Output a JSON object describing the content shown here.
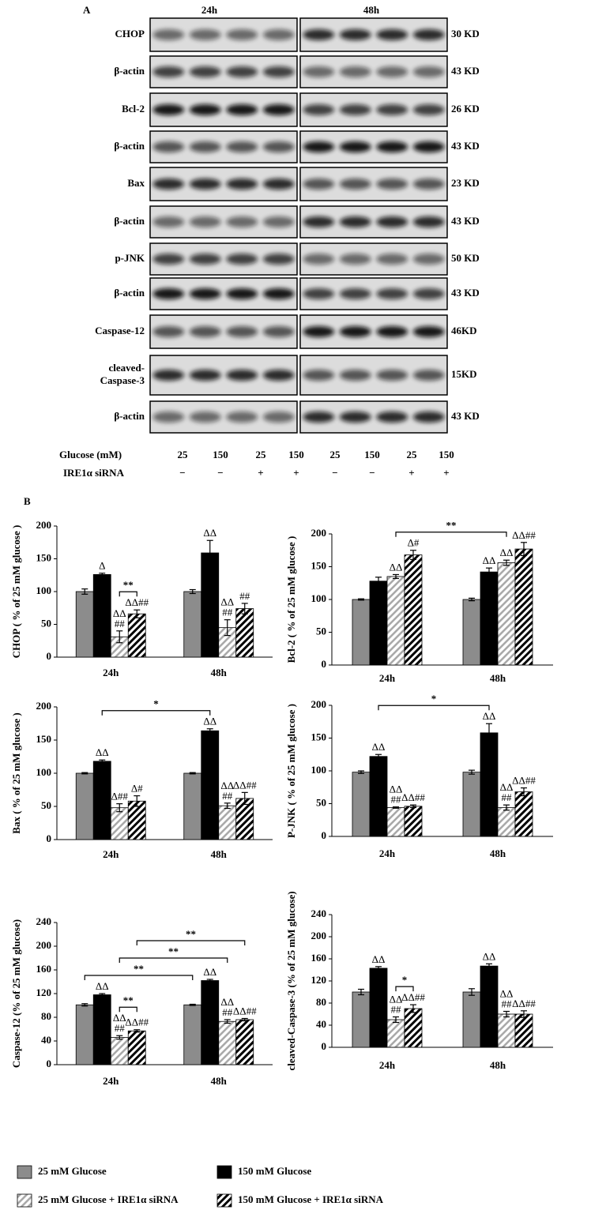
{
  "panel_a": {
    "label": "A",
    "times": [
      "24h",
      "48h"
    ],
    "rows": [
      {
        "label": [
          "CHOP"
        ],
        "kd": "30 KD"
      },
      {
        "label": [
          "β-actin"
        ],
        "kd": "43 KD"
      },
      {
        "label": [
          "Bcl-2"
        ],
        "kd": "26 KD"
      },
      {
        "label": [
          "β-actin"
        ],
        "kd": "43 KD"
      },
      {
        "label": [
          "Bax"
        ],
        "kd": "23 KD"
      },
      {
        "label": [
          "β-actin"
        ],
        "kd": "43 KD"
      },
      {
        "label": [
          "p-JNK"
        ],
        "kd": "50 KD"
      },
      {
        "label": [
          "β-actin"
        ],
        "kd": "43 KD"
      },
      {
        "label": [
          "Caspase-12"
        ],
        "kd": "46KD"
      },
      {
        "label": [
          "cleaved-",
          "Caspase-3"
        ],
        "kd": "15KD"
      },
      {
        "label": [
          "β-actin"
        ],
        "kd": "43 KD"
      }
    ],
    "glucose_label": "Glucose (mM)",
    "glucose": [
      25,
      150,
      25,
      150,
      25,
      150,
      25,
      150
    ],
    "sirna_label": "IRE1α siRNA",
    "sirna": [
      "−",
      "−",
      "+",
      "+",
      "−",
      "−",
      "+",
      "+"
    ]
  },
  "panel_b_label": "B",
  "chart_data": [
    {
      "type": "bar",
      "ylabel": "CHOP ( % of 25 mM glucose )",
      "categories": [
        "24h",
        "48h"
      ],
      "ylim": [
        0,
        200
      ],
      "yticks": [
        0,
        50,
        100,
        150,
        200
      ],
      "series": [
        {
          "name": "25 mM Glucose",
          "color": "#8c8c8c",
          "hatch": false,
          "values": [
            100,
            100
          ],
          "errors": [
            4,
            3
          ],
          "annotations": [
            null,
            null
          ]
        },
        {
          "name": "150 mM Glucose",
          "color": "#000000",
          "hatch": false,
          "values": [
            126,
            159
          ],
          "errors": [
            2,
            19
          ],
          "annotations": [
            [
              "Δ"
            ],
            [
              "ΔΔ"
            ]
          ]
        },
        {
          "name": "25 mM Glucose + IRE1α siRNA",
          "color": "#a6a6a6",
          "hatch": true,
          "values": [
            31,
            45
          ],
          "errors": [
            9,
            12
          ],
          "annotations": [
            [
              "ΔΔ",
              "##"
            ],
            [
              "ΔΔ",
              "##"
            ]
          ]
        },
        {
          "name": "150 mM Glucose + IRE1α siRNA",
          "color": "#000000",
          "hatch": true,
          "values": [
            66,
            74
          ],
          "errors": [
            6,
            8
          ],
          "annotations": [
            [
              "ΔΔ##"
            ],
            [
              "##"
            ]
          ]
        }
      ],
      "brackets": [
        {
          "from": [
            0,
            2
          ],
          "to": [
            0,
            3
          ],
          "label": "**"
        }
      ]
    },
    {
      "type": "bar",
      "ylabel": "Bcl-2 ( % of 25 mM glucose )",
      "categories": [
        "24h",
        "48h"
      ],
      "ylim": [
        0,
        200
      ],
      "yticks": [
        0,
        50,
        100,
        150,
        200
      ],
      "series": [
        {
          "color": "#8c8c8c",
          "hatch": false,
          "values": [
            100,
            100
          ],
          "errors": [
            1,
            2
          ],
          "annotations": [
            null,
            null
          ]
        },
        {
          "color": "#000000",
          "hatch": false,
          "values": [
            128,
            142
          ],
          "errors": [
            6,
            6
          ],
          "annotations": [
            null,
            [
              "ΔΔ"
            ]
          ]
        },
        {
          "color": "#a6a6a6",
          "hatch": true,
          "values": [
            135,
            156
          ],
          "errors": [
            3,
            4
          ],
          "annotations": [
            [
              "ΔΔ"
            ],
            [
              "ΔΔ"
            ]
          ]
        },
        {
          "color": "#000000",
          "hatch": true,
          "values": [
            168,
            177
          ],
          "errors": [
            7,
            10
          ],
          "annotations": [
            [
              "Δ#"
            ],
            [
              "ΔΔ##"
            ]
          ]
        }
      ],
      "brackets": [
        {
          "from": [
            0,
            2
          ],
          "to": [
            1,
            2
          ],
          "label": "**"
        }
      ]
    },
    {
      "type": "bar",
      "ylabel": "Bax ( % of 25 mM glucose )",
      "categories": [
        "24h",
        "48h"
      ],
      "ylim": [
        0,
        200
      ],
      "yticks": [
        0,
        50,
        100,
        150,
        200
      ],
      "series": [
        {
          "color": "#8c8c8c",
          "hatch": false,
          "values": [
            100,
            100
          ],
          "errors": [
            1,
            1
          ],
          "annotations": [
            null,
            null
          ]
        },
        {
          "color": "#000000",
          "hatch": false,
          "values": [
            118,
            164
          ],
          "errors": [
            2,
            3
          ],
          "annotations": [
            [
              "ΔΔ"
            ],
            [
              "ΔΔ"
            ]
          ]
        },
        {
          "color": "#a6a6a6",
          "hatch": true,
          "values": [
            48,
            51
          ],
          "errors": [
            6,
            4
          ],
          "annotations": [
            [
              "Δ##"
            ],
            [
              "ΔΔ",
              "##"
            ]
          ]
        },
        {
          "color": "#000000",
          "hatch": true,
          "values": [
            58,
            62
          ],
          "errors": [
            8,
            9
          ],
          "annotations": [
            [
              "Δ#"
            ],
            [
              "ΔΔ##"
            ]
          ]
        }
      ],
      "brackets": [
        {
          "from": [
            0,
            1
          ],
          "to": [
            1,
            1
          ],
          "label": "*"
        }
      ]
    },
    {
      "type": "bar",
      "ylabel": "P-JNK ( % of 25 mM glucose )",
      "categories": [
        "24h",
        "48h"
      ],
      "ylim": [
        0,
        200
      ],
      "yticks": [
        0,
        50,
        100,
        150,
        200
      ],
      "series": [
        {
          "color": "#8c8c8c",
          "hatch": false,
          "values": [
            98,
            98
          ],
          "errors": [
            2,
            3
          ],
          "annotations": [
            null,
            null
          ]
        },
        {
          "color": "#000000",
          "hatch": false,
          "values": [
            122,
            158
          ],
          "errors": [
            3,
            14
          ],
          "annotations": [
            [
              "ΔΔ"
            ],
            [
              "ΔΔ"
            ]
          ]
        },
        {
          "color": "#a6a6a6",
          "hatch": true,
          "values": [
            44,
            44
          ],
          "errors": [
            1,
            4
          ],
          "annotations": [
            [
              "ΔΔ",
              "##"
            ],
            [
              "ΔΔ",
              "##"
            ]
          ]
        },
        {
          "color": "#000000",
          "hatch": true,
          "values": [
            46,
            68
          ],
          "errors": [
            2,
            6
          ],
          "annotations": [
            [
              "ΔΔ##"
            ],
            [
              "ΔΔ##"
            ]
          ]
        }
      ],
      "brackets": [
        {
          "from": [
            0,
            1
          ],
          "to": [
            1,
            1
          ],
          "label": "*"
        }
      ]
    },
    {
      "type": "bar",
      "ylabel": "Caspase-12 (% of 25 mM glucose)",
      "categories": [
        "24h",
        "48h"
      ],
      "ylim": [
        0,
        240
      ],
      "yticks": [
        0,
        40,
        80,
        120,
        160,
        200,
        240
      ],
      "series": [
        {
          "color": "#8c8c8c",
          "hatch": false,
          "values": [
            101,
            101
          ],
          "errors": [
            2,
            1
          ],
          "annotations": [
            null,
            null
          ]
        },
        {
          "color": "#000000",
          "hatch": false,
          "values": [
            118,
            142
          ],
          "errors": [
            2,
            2
          ],
          "annotations": [
            [
              "ΔΔ"
            ],
            [
              "ΔΔ"
            ]
          ]
        },
        {
          "color": "#a6a6a6",
          "hatch": true,
          "values": [
            46,
            73
          ],
          "errors": [
            3,
            3
          ],
          "annotations": [
            [
              "ΔΔ",
              "##"
            ],
            [
              "ΔΔ",
              "##"
            ]
          ]
        },
        {
          "color": "#000000",
          "hatch": true,
          "values": [
            57,
            76
          ],
          "errors": [
            2,
            2
          ],
          "annotations": [
            [
              "ΔΔ##"
            ],
            [
              "ΔΔ##"
            ]
          ]
        }
      ],
      "brackets": [
        {
          "from": [
            0,
            2
          ],
          "to": [
            0,
            3
          ],
          "label": "**"
        },
        {
          "from": [
            0,
            0
          ],
          "to": [
            1,
            0
          ],
          "label": "**"
        },
        {
          "from": [
            0,
            2
          ],
          "to": [
            1,
            2
          ],
          "label": "**"
        },
        {
          "from": [
            0,
            3
          ],
          "to": [
            1,
            3
          ],
          "label": "**"
        }
      ]
    },
    {
      "type": "bar",
      "ylabel": "cleaved-Caspase-3 (% of 25 mM glucose)",
      "categories": [
        "24h",
        "48h"
      ],
      "ylim": [
        0,
        240
      ],
      "yticks": [
        0,
        40,
        80,
        120,
        160,
        200,
        240
      ],
      "series": [
        {
          "color": "#8c8c8c",
          "hatch": false,
          "values": [
            100,
            100
          ],
          "errors": [
            5,
            6
          ],
          "annotations": [
            null,
            null
          ]
        },
        {
          "color": "#000000",
          "hatch": false,
          "values": [
            143,
            147
          ],
          "errors": [
            3,
            4
          ],
          "annotations": [
            [
              "ΔΔ"
            ],
            [
              "ΔΔ"
            ]
          ]
        },
        {
          "color": "#a6a6a6",
          "hatch": true,
          "values": [
            50,
            60
          ],
          "errors": [
            5,
            5
          ],
          "annotations": [
            [
              "ΔΔ",
              "##"
            ],
            [
              "ΔΔ",
              "##"
            ]
          ]
        },
        {
          "color": "#000000",
          "hatch": true,
          "values": [
            70,
            60
          ],
          "errors": [
            7,
            6
          ],
          "annotations": [
            [
              "ΔΔ##"
            ],
            [
              "ΔΔ##"
            ]
          ]
        }
      ],
      "brackets": [
        {
          "from": [
            0,
            2
          ],
          "to": [
            0,
            3
          ],
          "label": "*"
        }
      ]
    }
  ]
}
